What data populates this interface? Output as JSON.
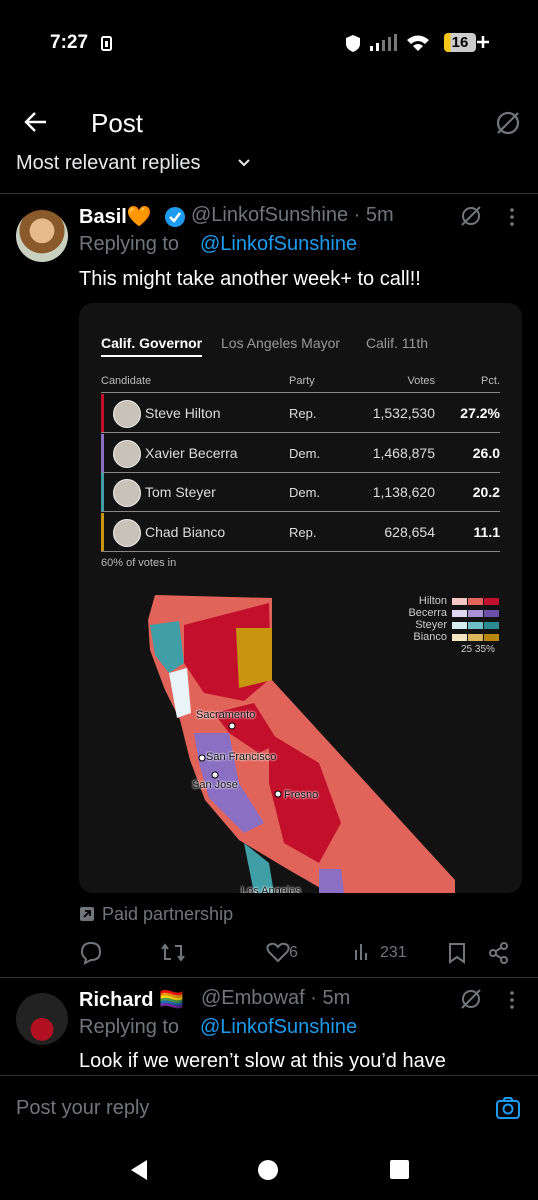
{
  "status": {
    "time": "7:27",
    "battery": "16"
  },
  "header": {
    "title": "Post"
  },
  "section": {
    "label": "Most relevant replies"
  },
  "tweets": [
    {
      "name": "Basil🧡",
      "meta": "@LinkofSunshine · 5m",
      "replying": "Replying to",
      "reply_to": "@LinkofSunshine",
      "text": "This might take another week+ to call!!"
    },
    {
      "name": "Richard 🏳️‍🌈",
      "meta": "@Embowaf · 5m",
      "replying": "Replying to",
      "reply_to": "@LinkofSunshine",
      "text": "Look if we weren’t slow at this you’d have"
    }
  ],
  "embed": {
    "tabs": [
      "Calif. Governor",
      "Los Angeles Mayor",
      "Calif. 11th"
    ],
    "columns": [
      "Candidate",
      "Party",
      "Votes",
      "Pct."
    ],
    "rows": [
      [
        "Steve Hilton",
        "Rep.",
        "1,532,530",
        "27.2%"
      ],
      [
        "Xavier Becerra",
        "Dem.",
        "1,468,875",
        "26.0"
      ],
      [
        "Tom Steyer",
        "Dem.",
        "1,138,620",
        "20.2"
      ],
      [
        "Chad Bianco",
        "Rep.",
        "628,654",
        "11.1"
      ]
    ],
    "note": "60% of votes in",
    "legend": [
      "Hilton",
      "Becerra",
      "Steyer",
      "Bianco"
    ],
    "legend_scale": "25 35%",
    "cities": [
      "Sacramento",
      "San Francisco",
      "San Jose",
      "Fresno",
      "Los Angeles"
    ]
  },
  "paid": "Paid partnership",
  "actions": {
    "likes": "6",
    "views": "231"
  },
  "reply_box": {
    "placeholder": "Post your reply"
  }
}
